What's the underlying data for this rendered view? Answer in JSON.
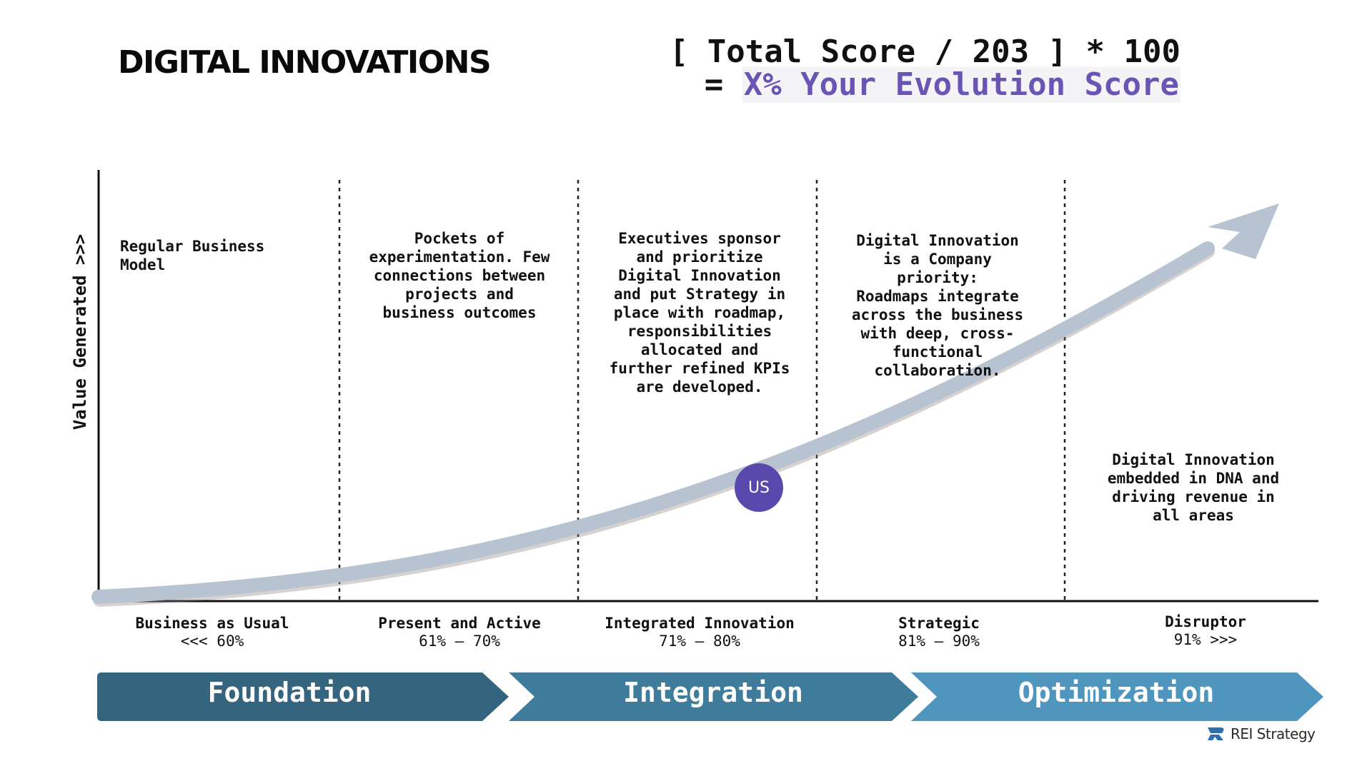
{
  "header": {
    "title": "DIGITAL INNOVATIONS",
    "formula_line1": "[ Total Score / 203 ] * 100",
    "formula_eq": "= ",
    "formula_score": "X% Your Evolution Score"
  },
  "axis": {
    "y_label": "Value Generated >>>"
  },
  "descriptions": [
    "Regular Business\nModel",
    "Pockets of\nexperimentation. Few\nconnections between\nprojects and\nbusiness outcomes",
    "Executives sponsor\nand prioritize\nDigital Innovation\nand put Strategy in\nplace with roadmap,\nresponsibilities\nallocated and\nfurther refined KPIs\nare developed.",
    "Digital Innovation\nis a Company\npriority:\nRoadmaps integrate\nacross the business\nwith deep, cross-\nfunctional\ncollaboration.",
    "Digital Innovation\nembedded in DNA and\ndriving revenue in\nall areas"
  ],
  "stages": [
    {
      "name": "Business as Usual",
      "range": "<<< 60%"
    },
    {
      "name": "Present and Active",
      "range": "61% – 70%"
    },
    {
      "name": "Integrated Innovation",
      "range": "71% – 80%"
    },
    {
      "name": "Strategic",
      "range": "81% – 90%"
    },
    {
      "name": "Disruptor",
      "range": "91% >>>"
    }
  ],
  "marker": {
    "label": "US"
  },
  "phases": [
    "Foundation",
    "Integration",
    "Optimization"
  ],
  "brand": {
    "name": "REI Strategy"
  },
  "colors": {
    "accent": "#6a55b5",
    "marker": "#5a49ad",
    "curve": "#b8c3d1",
    "phase_1": "#35647f",
    "phase_2": "#3f7b9b",
    "phase_3": "#4e96bd"
  }
}
